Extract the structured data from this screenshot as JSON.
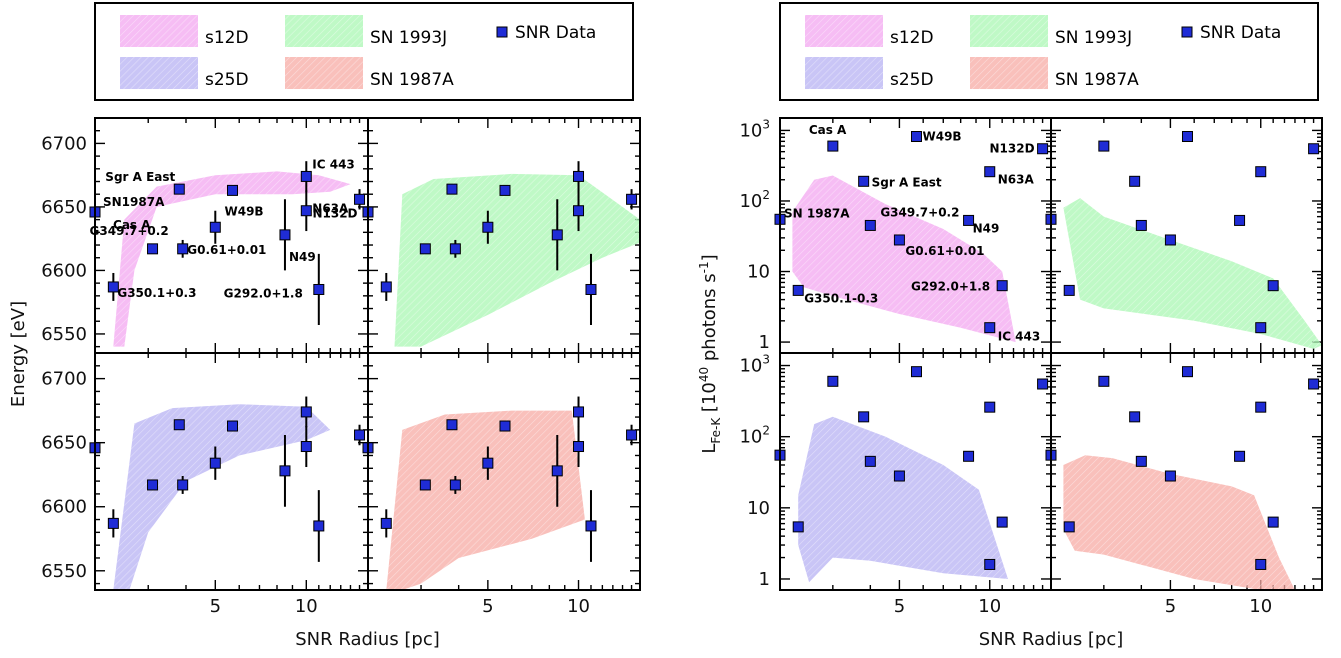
{
  "chart_data": [
    {
      "type": "scatter",
      "title": "",
      "xlabel": "SNR Radius [pc]",
      "ylabel": "Energy [eV]",
      "xscale": "log",
      "xlim": [
        2.0,
        16.0
      ],
      "ylim": [
        6535,
        6720
      ],
      "x_tick_labels": [
        "5",
        "10"
      ],
      "y_tick_labels": [
        "6550",
        "6600",
        "6650",
        "6700"
      ],
      "legend": {
        "entries": [
          {
            "name": "s12D",
            "color": "#f3a6f0"
          },
          {
            "name": "SN 1993J",
            "color": "#a9f7b3"
          },
          {
            "name": "SNR Data",
            "color": "#1f2cd6"
          },
          {
            "name": "s25D",
            "color": "#b7b1f2"
          },
          {
            "name": "SN 1987A",
            "color": "#f7aaa4"
          }
        ],
        "placement": "top"
      },
      "panels": [
        "s12D",
        "SN 1993J",
        "s25D",
        "SN 1987A"
      ],
      "series": [
        {
          "name": "SNR Data",
          "points": [
            {
              "label": "SN1987A",
              "x": 2.0,
              "y": 6646,
              "yerr": 3
            },
            {
              "label": "G350.1+0.3",
              "x": 2.3,
              "y": 6587,
              "yerr": 11
            },
            {
              "label": "Cas A",
              "x": 3.1,
              "y": 6617,
              "yerr": 2
            },
            {
              "label": "G349.7+0.2",
              "x": 3.9,
              "y": 6617,
              "yerr": 7
            },
            {
              "label": "Sgr A East",
              "x": 3.8,
              "y": 6664,
              "yerr": 1
            },
            {
              "label": "W49B",
              "x": 5.7,
              "y": 6663,
              "yerr": 1
            },
            {
              "label": "G0.61+0.01",
              "x": 5.0,
              "y": 6634,
              "yerr": 13
            },
            {
              "label": "N49",
              "x": 8.5,
              "y": 6628,
              "yerr": 28
            },
            {
              "label": "N63A",
              "x": 10.0,
              "y": 6647,
              "yerr": 16
            },
            {
              "label": "IC 443",
              "x": 10.0,
              "y": 6674,
              "yerr": 12
            },
            {
              "label": "G292.0+1.8",
              "x": 11.0,
              "y": 6585,
              "yerr": 28
            },
            {
              "label": "N132D",
              "x": 15.0,
              "y": 6656,
              "yerr": 8
            }
          ]
        }
      ]
    },
    {
      "type": "scatter",
      "title": "",
      "xlabel": "SNR Radius [pc]",
      "ylabel": "L",
      "ylabel_sub": "Fe-K",
      "ylabel_unit": "[10",
      "ylabel_exp": "40",
      "ylabel_unit2": " photons s",
      "ylabel_exp2": "-1",
      "ylabel_end": "]",
      "xscale": "log",
      "yscale": "log",
      "xlim": [
        2.0,
        16.0
      ],
      "ylim": [
        0.7,
        1500
      ],
      "x_tick_labels": [
        "5",
        "10"
      ],
      "y_tick_labels": [
        "1",
        "10",
        "10",
        "10"
      ],
      "y_tick_exps": [
        "",
        "",
        "2",
        "3"
      ],
      "legend": {
        "entries": [
          {
            "name": "s12D",
            "color": "#f3a6f0"
          },
          {
            "name": "SN 1993J",
            "color": "#a9f7b3"
          },
          {
            "name": "SNR Data",
            "color": "#1f2cd6"
          },
          {
            "name": "s25D",
            "color": "#b7b1f2"
          },
          {
            "name": "SN 1987A",
            "color": "#f7aaa4"
          }
        ],
        "placement": "top"
      },
      "panels": [
        "s12D",
        "SN 1993J",
        "s25D",
        "SN 1987A"
      ],
      "series": [
        {
          "name": "SNR Data",
          "points": [
            {
              "label": "Cas A",
              "x": 3.0,
              "y": 600
            },
            {
              "label": "W49B",
              "x": 5.7,
              "y": 820
            },
            {
              "label": "N132D",
              "x": 15.0,
              "y": 550
            },
            {
              "label": "Sgr A East",
              "x": 3.8,
              "y": 190
            },
            {
              "label": "N63A",
              "x": 10.0,
              "y": 260
            },
            {
              "label": "SN 1987A",
              "x": 2.0,
              "y": 55
            },
            {
              "label": "G349.7+0.2",
              "x": 4.0,
              "y": 45
            },
            {
              "label": "N49",
              "x": 8.5,
              "y": 53
            },
            {
              "label": "G0.61+0.01",
              "x": 5.0,
              "y": 28
            },
            {
              "label": "G292.0+1.8",
              "x": 11.0,
              "y": 6.3
            },
            {
              "label": "G350.1-0.3",
              "x": 2.3,
              "y": 5.4
            },
            {
              "label": "IC 443",
              "x": 10.0,
              "y": 1.6
            }
          ]
        }
      ]
    }
  ],
  "colors": {
    "s12D": "#f3a6f0",
    "SN 1993J": "#a9f7b3",
    "s25D": "#b7b1f2",
    "SN 1987A": "#f7aaa4",
    "data": "#1f2cd6"
  }
}
